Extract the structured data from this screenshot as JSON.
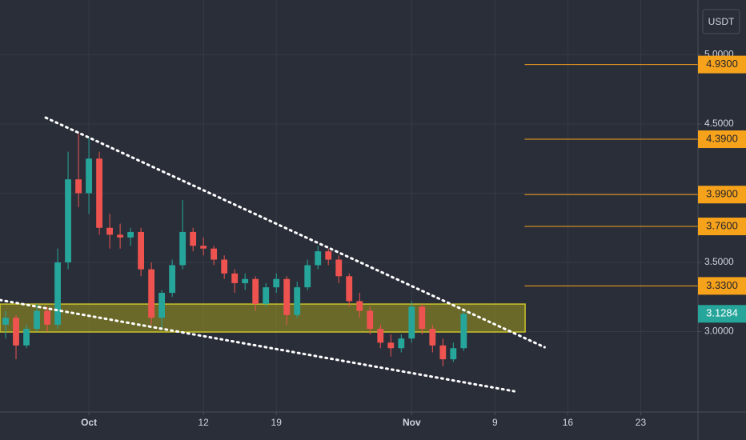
{
  "chart_data": {
    "type": "candlestick",
    "currency": "USDT",
    "x": [
      -8,
      -7,
      -6,
      -5,
      -4,
      -3,
      -2,
      -1,
      0,
      1,
      2,
      3,
      4,
      5,
      6,
      7,
      8,
      9,
      10,
      11,
      12,
      13,
      14,
      15,
      16,
      17,
      18,
      19,
      20,
      21,
      22,
      23,
      24,
      25,
      26,
      27,
      28,
      29,
      30,
      31,
      32,
      33,
      34,
      35,
      36
    ],
    "open": [
      3.05,
      3.1,
      2.9,
      3.02,
      3.15,
      3.05,
      3.5,
      4.1,
      4.0,
      4.25,
      3.75,
      3.7,
      3.68,
      3.72,
      3.45,
      3.1,
      3.28,
      3.48,
      3.72,
      3.62,
      3.6,
      3.52,
      3.42,
      3.35,
      3.38,
      3.2,
      3.32,
      3.38,
      3.12,
      3.32,
      3.48,
      3.58,
      3.52,
      3.4,
      3.22,
      3.15,
      3.02,
      2.92,
      2.88,
      2.95,
      3.18,
      3.02,
      2.9,
      2.8,
      2.88
    ],
    "high": [
      3.15,
      3.12,
      3.05,
      3.2,
      3.18,
      3.6,
      4.3,
      4.44,
      4.4,
      4.3,
      3.85,
      3.78,
      3.75,
      3.75,
      3.5,
      3.3,
      3.52,
      3.95,
      3.75,
      3.68,
      3.62,
      3.55,
      3.45,
      3.42,
      3.4,
      3.35,
      3.42,
      3.4,
      3.36,
      3.52,
      3.62,
      3.6,
      3.55,
      3.42,
      3.28,
      3.18,
      3.05,
      2.98,
      2.98,
      3.22,
      3.2,
      3.05,
      2.95,
      2.92,
      3.15
    ],
    "low": [
      2.95,
      2.8,
      2.88,
      3.0,
      3.0,
      3.02,
      3.45,
      3.9,
      3.85,
      3.7,
      3.6,
      3.6,
      3.62,
      3.4,
      3.05,
      3.02,
      3.25,
      3.45,
      3.58,
      3.55,
      3.48,
      3.38,
      3.28,
      3.3,
      3.15,
      3.18,
      3.28,
      3.05,
      3.1,
      3.3,
      3.45,
      3.48,
      3.35,
      3.18,
      3.1,
      2.98,
      2.88,
      2.82,
      2.85,
      2.92,
      2.98,
      2.85,
      2.75,
      2.78,
      2.86
    ],
    "close": [
      3.1,
      2.9,
      3.02,
      3.15,
      3.05,
      3.5,
      4.1,
      4.0,
      4.25,
      3.75,
      3.7,
      3.68,
      3.72,
      3.45,
      3.1,
      3.28,
      3.48,
      3.72,
      3.62,
      3.6,
      3.52,
      3.42,
      3.35,
      3.38,
      3.2,
      3.32,
      3.38,
      3.12,
      3.32,
      3.48,
      3.58,
      3.52,
      3.4,
      3.22,
      3.15,
      3.02,
      2.92,
      2.88,
      2.95,
      3.18,
      3.02,
      2.9,
      2.8,
      2.88,
      3.1284
    ],
    "up_color": "#26a69a",
    "down_color": "#ef5350",
    "xlim": [
      -8.54,
      58.5
    ],
    "xticks": [
      {
        "value": 0,
        "label": "Oct"
      },
      {
        "value": 11,
        "label": "12"
      },
      {
        "value": 18,
        "label": "19"
      },
      {
        "value": 31,
        "label": "Nov"
      },
      {
        "value": 39,
        "label": "9"
      },
      {
        "value": 46,
        "label": "16"
      },
      {
        "value": 53,
        "label": "23"
      }
    ],
    "ylim": [
      2.419,
      5.396
    ],
    "yticks": [
      {
        "value": 3,
        "label": "3.0000"
      },
      {
        "value": 3.5,
        "label": "3.5000"
      },
      {
        "value": 4,
        "label": "4.0000"
      },
      {
        "value": 4.5,
        "label": "4.5000"
      },
      {
        "value": 5,
        "label": "5.0000"
      }
    ],
    "grid": true,
    "levels": [
      {
        "value": 4.93,
        "label": "4.9300"
      },
      {
        "value": 4.39,
        "label": "4.3900"
      },
      {
        "value": 3.99,
        "label": "3.9900"
      },
      {
        "value": 3.76,
        "label": "3.7600"
      },
      {
        "value": 3.33,
        "label": "3.3300"
      }
    ],
    "levels_start": 41.85,
    "level_color": "#f7a21b",
    "zone": {
      "x": [
        -8.54,
        41.9
      ],
      "y": [
        2.997,
        3.199
      ],
      "color": "#9e9a1e"
    },
    "trendlines": [
      {
        "x": [
          -4.15,
          43.77
        ],
        "y": [
          4.546,
          2.887
        ]
      },
      {
        "x": [
          -8.54,
          40.85
        ],
        "y": [
          3.228,
          2.569
        ]
      }
    ]
  }
}
